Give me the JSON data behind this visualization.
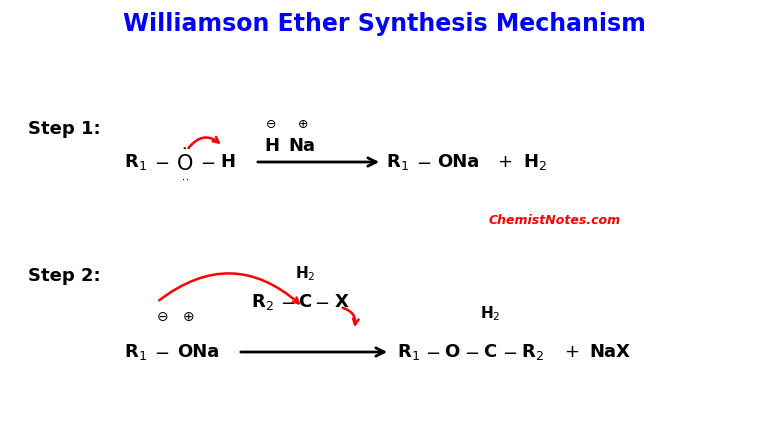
{
  "title": "Williamson Ether Synthesis Mechanism",
  "title_color": "#0000FF",
  "title_fontsize": 17,
  "background_color": "#FFFFFF",
  "step1_label": "Step 1:",
  "step2_label": "Step 2:",
  "watermark": "ChemistNotes.com",
  "watermark_color": "#FF0000",
  "text_color": "#000000",
  "fs_main": 13,
  "fs_sub": 10,
  "fs_charge": 8
}
